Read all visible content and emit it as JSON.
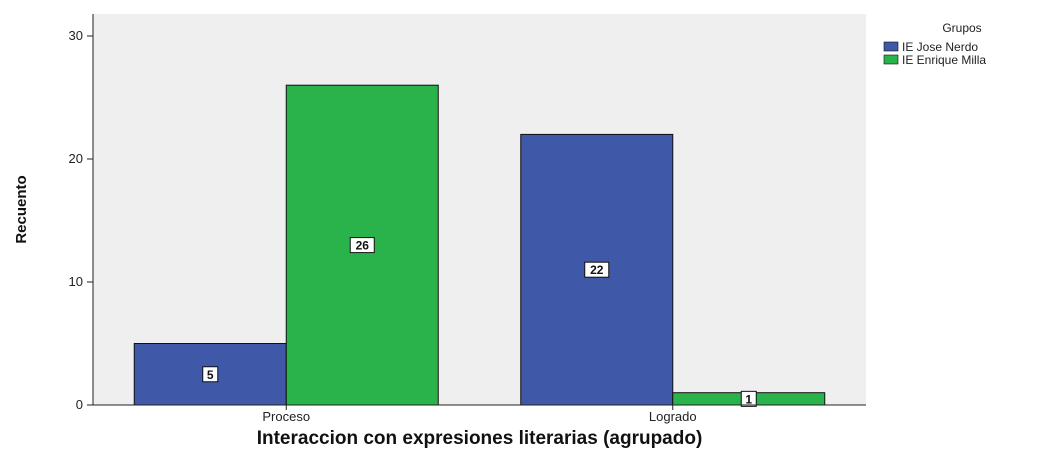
{
  "chart_data": {
    "type": "bar",
    "xlabel": "Interaccion con expresiones literarias (agrupado)",
    "ylabel": "Recuento",
    "categories": [
      "Proceso",
      "Logrado"
    ],
    "series": [
      {
        "name": "IE Jose Nerdo",
        "color": "#3f58a8",
        "values": [
          5,
          22
        ]
      },
      {
        "name": "IE Enrique Milla",
        "color": "#2ab34a",
        "values": [
          26,
          1
        ]
      }
    ],
    "ylim": [
      0,
      30
    ],
    "yticks": [
      0,
      10,
      20,
      30
    ],
    "grid": false,
    "legend": {
      "title": "Grupos",
      "placement": "top-right"
    },
    "plot_background": "#efefef"
  }
}
